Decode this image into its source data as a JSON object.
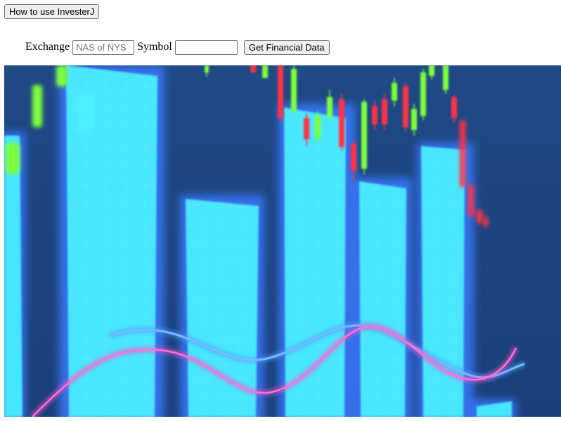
{
  "help": {
    "label": "How to use InvesterJ"
  },
  "form": {
    "exchange_label": "Exchange",
    "exchange_placeholder": "NAS of NYS",
    "exchange_value": "",
    "symbol_label": "Symbol",
    "symbol_value": "",
    "submit_label": "Get Financial Data"
  },
  "hero": {
    "colors": {
      "background": "#1c4680",
      "bar": "#45e6ff",
      "bar_glow": "#3a78ff",
      "candle_up": "#7cff3a",
      "candle_down": "#ff3344",
      "wave_pink": "#ff4fc8",
      "wave_blue": "#4a9cff"
    }
  }
}
